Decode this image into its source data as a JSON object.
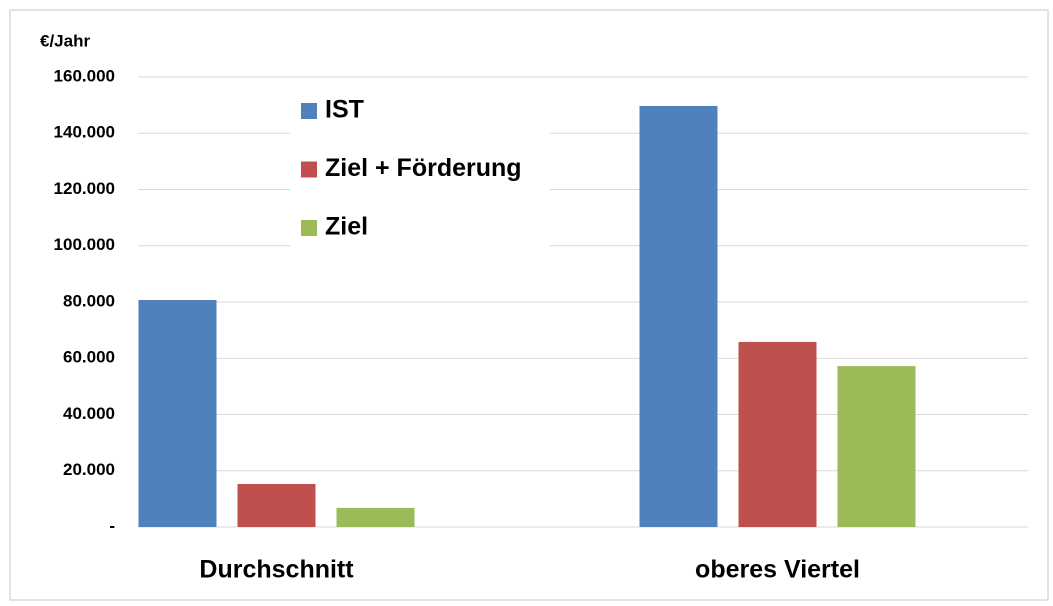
{
  "chart_data": {
    "type": "bar",
    "y_label": "€/Jahr",
    "categories": [
      "Durchschnitt",
      "oberes Viertel"
    ],
    "series": [
      {
        "name": "IST",
        "color": "#4f81bd",
        "values": [
          80700,
          149700
        ]
      },
      {
        "name": "Ziel + Förderung",
        "color": "#c0504d",
        "values": [
          15300,
          65800
        ]
      },
      {
        "name": "Ziel",
        "color": "#9bbb59",
        "values": [
          6800,
          57200
        ]
      }
    ],
    "ylim": [
      0,
      160000
    ],
    "yticks": [
      {
        "value": 0,
        "label": "-"
      },
      {
        "value": 20000,
        "label": "20.000"
      },
      {
        "value": 40000,
        "label": "40.000"
      },
      {
        "value": 60000,
        "label": "60.000"
      },
      {
        "value": 80000,
        "label": "80.000"
      },
      {
        "value": 100000,
        "label": "100.000"
      },
      {
        "value": 120000,
        "label": "120.000"
      },
      {
        "value": 140000,
        "label": "140.000"
      },
      {
        "value": 160000,
        "label": "160.000"
      }
    ],
    "grid": true,
    "legend": "top-left"
  }
}
